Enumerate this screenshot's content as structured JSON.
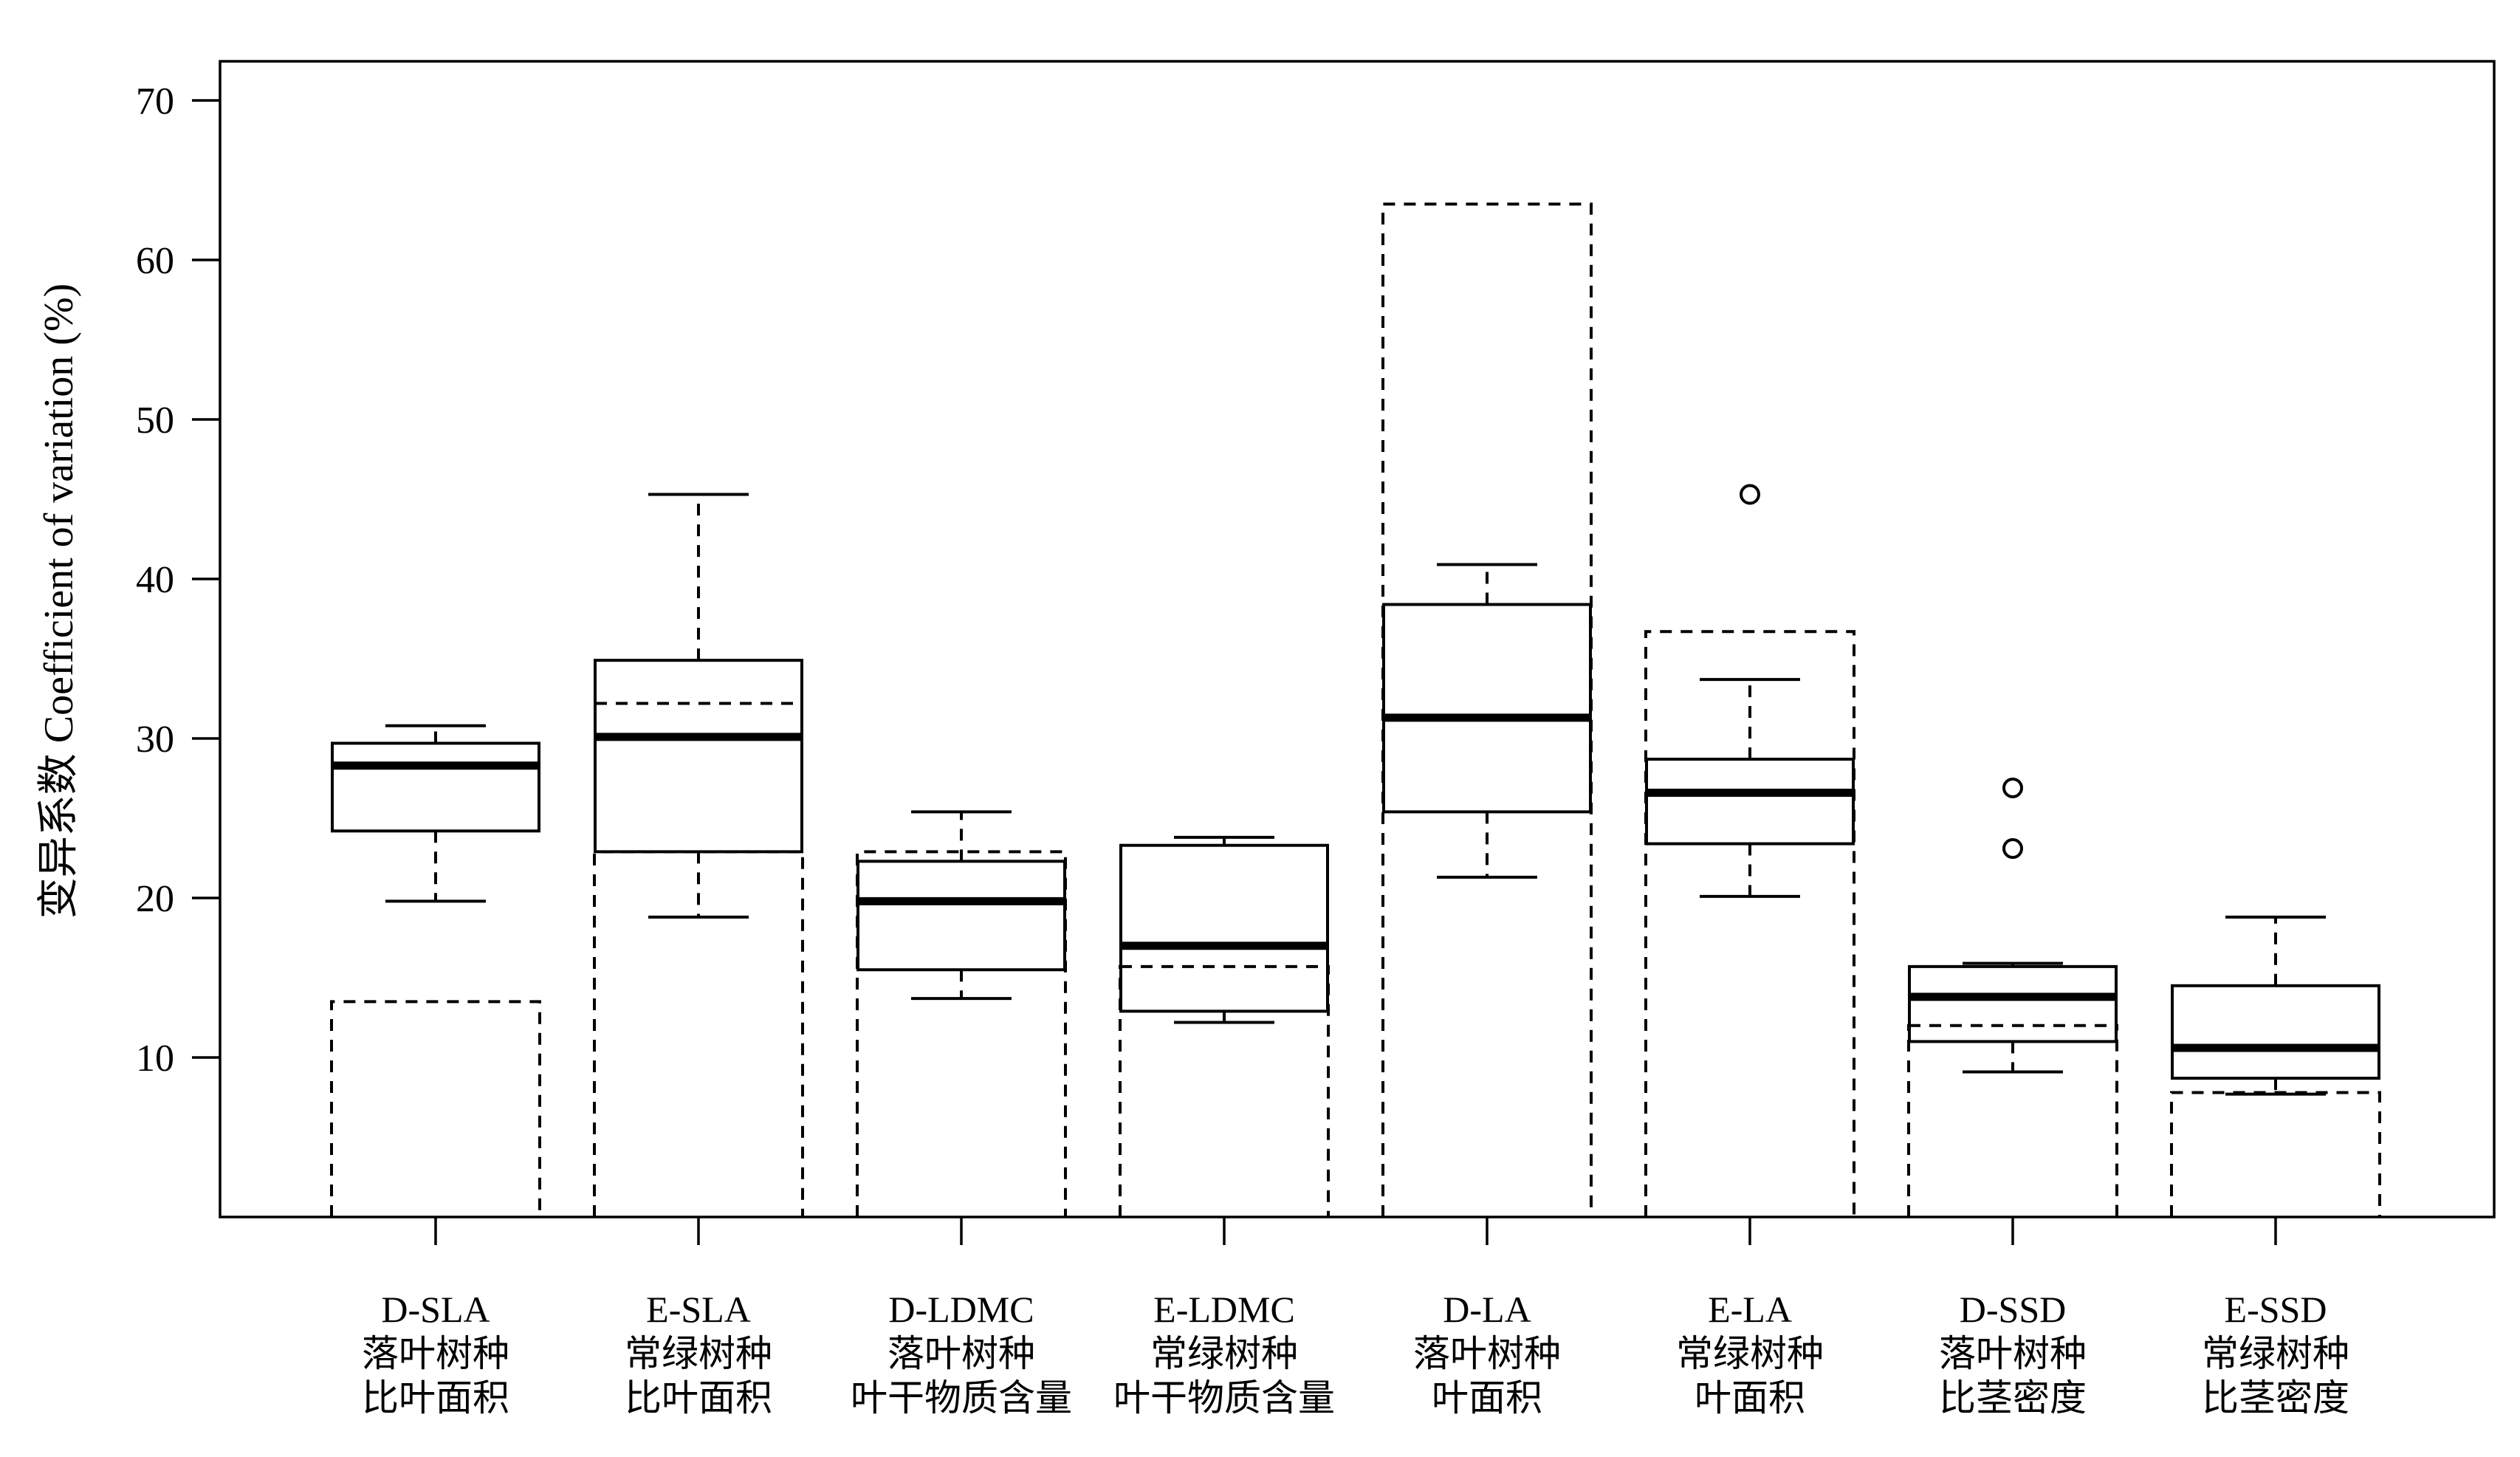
{
  "chart_data": {
    "type": "box",
    "ylabel": "变异系数 Coefficient of variation (%)",
    "xlabel": "",
    "ylim": [
      0,
      72
    ],
    "yticks": [
      10,
      20,
      30,
      40,
      50,
      60,
      70
    ],
    "grid": false,
    "categories": [
      {
        "code": "D-SLA",
        "line1": "落叶树种",
        "line2": "比叶面积"
      },
      {
        "code": "E-SLA",
        "line1": "常绿树种",
        "line2": "比叶面积"
      },
      {
        "code": "D-LDMC",
        "line1": "落叶树种",
        "line2": "叶干物质含量"
      },
      {
        "code": "E-LDMC",
        "line1": "常绿树种",
        "line2": "叶干物质含量"
      },
      {
        "code": "D-LA",
        "line1": "落叶树种",
        "line2": "叶面积"
      },
      {
        "code": "E-LA",
        "line1": "常绿树种",
        "line2": "叶面积"
      },
      {
        "code": "D-SSD",
        "line1": "落叶树种",
        "line2": "比茎密度"
      },
      {
        "code": "E-SSD",
        "line1": "常绿树种",
        "line2": "比茎密度"
      }
    ],
    "boxes": [
      {
        "bar": 13.5,
        "whisker_low": 19.8,
        "q1": 24.2,
        "median": 28.3,
        "q3": 29.7,
        "whisker_high": 30.8,
        "mean": null,
        "outliers": []
      },
      {
        "bar": 22.9,
        "whisker_low": 18.8,
        "q1": 22.9,
        "median": 30.1,
        "q3": 34.9,
        "whisker_high": 45.3,
        "mean": 32.2,
        "outliers": []
      },
      {
        "bar": 22.9,
        "whisker_low": 13.7,
        "q1": 15.5,
        "median": 19.8,
        "q3": 22.3,
        "whisker_high": 25.4,
        "mean": null,
        "outliers": []
      },
      {
        "bar": 15.7,
        "whisker_low": 12.2,
        "q1": 12.9,
        "median": 17.0,
        "q3": 23.3,
        "whisker_high": 23.8,
        "mean": null,
        "outliers": []
      },
      {
        "bar": 63.5,
        "whisker_low": 21.3,
        "q1": 25.4,
        "median": 31.3,
        "q3": 38.4,
        "whisker_high": 40.9,
        "mean": null,
        "outliers": []
      },
      {
        "bar": 36.7,
        "whisker_low": 20.1,
        "q1": 23.4,
        "median": 26.6,
        "q3": 28.7,
        "whisker_high": 33.7,
        "mean": null,
        "outliers": [
          45.3
        ]
      },
      {
        "bar": 12.0,
        "whisker_low": 9.1,
        "q1": 11.0,
        "median": 13.8,
        "q3": 15.7,
        "whisker_high": 15.9,
        "mean": null,
        "outliers": [
          23.1,
          26.9
        ]
      },
      {
        "bar": 7.8,
        "whisker_low": 7.7,
        "q1": 8.7,
        "median": 10.6,
        "q3": 14.5,
        "whisker_high": 18.8,
        "mean": null,
        "outliers": []
      }
    ]
  }
}
